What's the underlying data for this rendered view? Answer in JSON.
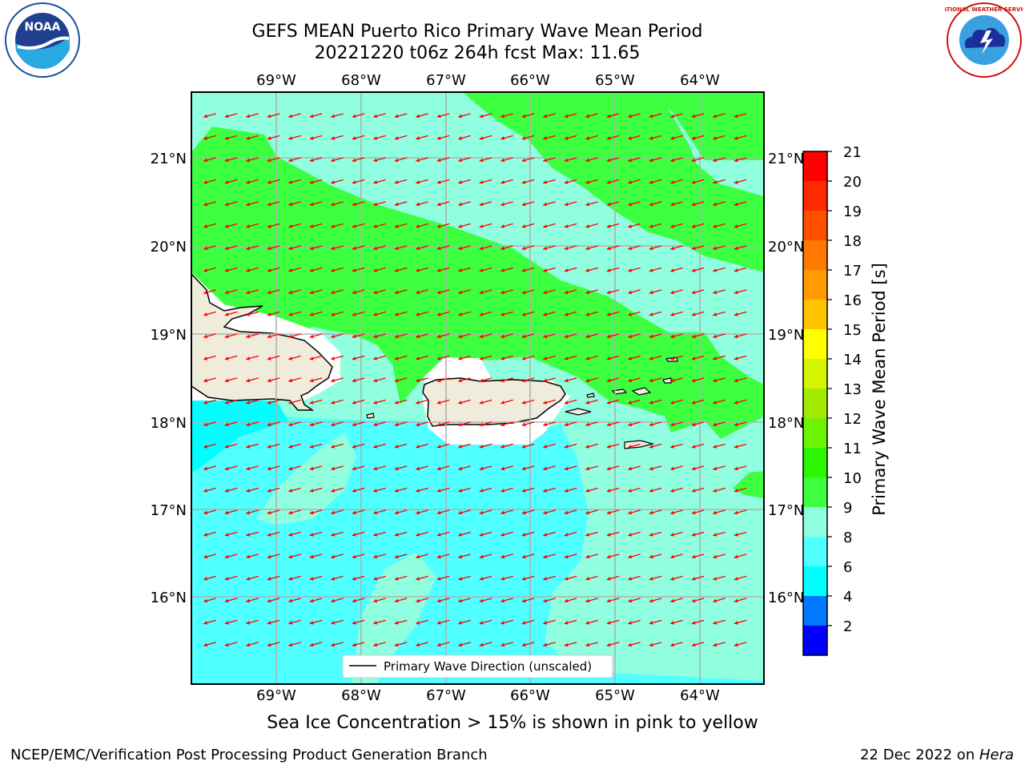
{
  "title": {
    "line1": "GEFS MEAN Puerto Rico Primary Wave Mean Period",
    "line2": "20221220 t06z 264h fcst   Max: 11.65"
  },
  "map": {
    "lon_labels": [
      "69°W",
      "68°W",
      "67°W",
      "66°W",
      "65°W",
      "64°W"
    ],
    "lat_labels": [
      "21°N",
      "20°N",
      "19°N",
      "18°N",
      "17°N",
      "16°N"
    ],
    "legend_label": "Primary Wave Direction (unscaled)",
    "arrow_color": "#ff0000"
  },
  "colorbar": {
    "label": "Primary Wave Mean Period [s]",
    "ticks": [
      "21",
      "20",
      "19",
      "18",
      "17",
      "16",
      "15",
      "14",
      "13",
      "12",
      "11",
      "10",
      "9",
      "8",
      "6",
      "4",
      "2"
    ],
    "colors": [
      "#ff0000",
      "#ff2a00",
      "#ff5000",
      "#ff7800",
      "#ff9a00",
      "#ffc400",
      "#ffff00",
      "#d4f400",
      "#a4ea00",
      "#6cf400",
      "#2cf600",
      "#3cff40",
      "#90ffe0",
      "#50ffff",
      "#00ffff",
      "#0078ff",
      "#0000ff"
    ]
  },
  "colors": {
    "green": "#3cff40",
    "aqua": "#90ffe0",
    "cyan": "#50ffff",
    "land": "#efecdc"
  },
  "note": "Sea Ice Concentration > 15% is shown in pink to yellow",
  "footer": {
    "left": "NCEP/EMC/Verification Post Processing Product Generation Branch",
    "date": "22 Dec 2022 on ",
    "machine": "Hera"
  },
  "logos": {
    "noaa_text": "NOAA",
    "nws_text": "NATIONAL WEATHER SERVICE"
  }
}
